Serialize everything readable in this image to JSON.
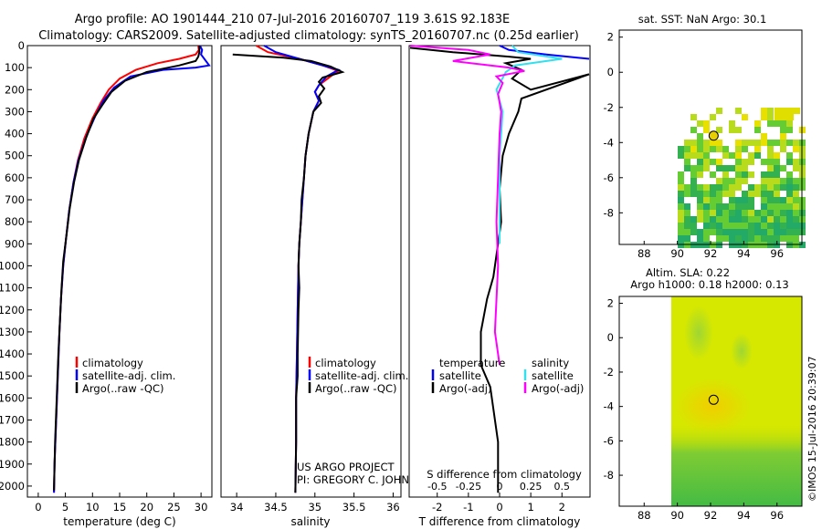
{
  "header": {
    "line1": "Argo profile: AO 1901444_210 07-Jul-2016 20160707_119 3.61S 92.183E",
    "line2": "Climatology: CARS2009. Satellite-adjusted climatology: synTS_20160707.nc (0.25d earlier)"
  },
  "colors": {
    "climatology": "#ff0000",
    "satellite": "#0000ff",
    "argo": "#000000",
    "sal_sat": "#33e0ee",
    "sal_argo": "#ff00ff"
  },
  "chart_data": [
    {
      "type": "line",
      "id": "temperature",
      "xlabel": "temperature (deg C)",
      "ylabel": "",
      "xlim": [
        -2,
        32
      ],
      "ylim": [
        2050,
        0
      ],
      "xticks": [
        0,
        5,
        10,
        15,
        20,
        25,
        30
      ],
      "yticks": [
        0,
        100,
        200,
        300,
        400,
        500,
        600,
        700,
        800,
        900,
        1000,
        1100,
        1200,
        1300,
        1400,
        1500,
        1600,
        1700,
        1800,
        1900,
        2000
      ],
      "legend": [
        "climatology",
        "satellite-adj. clim.",
        "Argo(..raw -QC)"
      ],
      "series": [
        {
          "name": "climatology",
          "color": "red",
          "points": [
            [
              29.5,
              0
            ],
            [
              29.6,
              20
            ],
            [
              29.0,
              40
            ],
            [
              26,
              60
            ],
            [
              22,
              80
            ],
            [
              18,
              110
            ],
            [
              15,
              150
            ],
            [
              13,
              200
            ],
            [
              11.5,
              260
            ],
            [
              10,
              330
            ],
            [
              8.5,
              420
            ],
            [
              7.3,
              520
            ],
            [
              6.5,
              620
            ],
            [
              5.7,
              750
            ],
            [
              5.1,
              880
            ],
            [
              4.6,
              1000
            ],
            [
              4.2,
              1150
            ],
            [
              3.9,
              1300
            ],
            [
              3.6,
              1500
            ],
            [
              3.3,
              1700
            ],
            [
              3.0,
              1900
            ],
            [
              2.9,
              2030
            ]
          ]
        },
        {
          "name": "satellite-adj. clim.",
          "color": "blue",
          "points": [
            [
              29.8,
              0
            ],
            [
              30.2,
              20
            ],
            [
              30.0,
              40
            ],
            [
              31.5,
              90
            ],
            [
              29,
              100
            ],
            [
              23,
              110
            ],
            [
              17,
              140
            ],
            [
              14,
              190
            ],
            [
              12,
              250
            ],
            [
              10.5,
              320
            ],
            [
              8.9,
              410
            ],
            [
              7.4,
              520
            ],
            [
              6.5,
              620
            ],
            [
              5.7,
              750
            ],
            [
              5.1,
              880
            ],
            [
              4.6,
              1000
            ],
            [
              4.2,
              1150
            ],
            [
              3.9,
              1300
            ],
            [
              3.6,
              1500
            ],
            [
              3.3,
              1700
            ],
            [
              3.0,
              1900
            ],
            [
              2.9,
              2030
            ]
          ]
        },
        {
          "name": "Argo(..raw -QC)",
          "color": "black",
          "points": [
            [
              29.7,
              0
            ],
            [
              29.7,
              30
            ],
            [
              29.5,
              50
            ],
            [
              29.0,
              70
            ],
            [
              26,
              90
            ],
            [
              20,
              120
            ],
            [
              16,
              160
            ],
            [
              13.5,
              210
            ],
            [
              11.8,
              270
            ],
            [
              10.2,
              330
            ],
            [
              8.8,
              420
            ],
            [
              7.5,
              520
            ],
            [
              6.6,
              620
            ],
            [
              5.8,
              740
            ],
            [
              5.2,
              860
            ],
            [
              4.6,
              980
            ],
            [
              4.3,
              1100
            ],
            [
              4.1,
              1200
            ],
            [
              3.7,
              1400
            ],
            [
              3.4,
              1600
            ],
            [
              3.1,
              1800
            ],
            [
              2.9,
              2020
            ]
          ]
        }
      ]
    },
    {
      "type": "line",
      "id": "salinity",
      "xlabel": "salinity",
      "ylabel": "",
      "xlim": [
        33.8,
        36.1
      ],
      "ylim": [
        2050,
        0
      ],
      "xticks": [
        34,
        34.5,
        35,
        35.5,
        36
      ],
      "legend": [
        "climatology",
        "satellite-adj. clim.",
        "Argo(..raw -QC)"
      ],
      "series": [
        {
          "name": "climatology",
          "color": "red",
          "points": [
            [
              34.25,
              0
            ],
            [
              34.4,
              30
            ],
            [
              34.8,
              60
            ],
            [
              35.1,
              90
            ],
            [
              35.3,
              115
            ],
            [
              35.2,
              140
            ],
            [
              35.05,
              180
            ],
            [
              35.0,
              210
            ],
            [
              35.05,
              250
            ],
            [
              34.98,
              300
            ],
            [
              34.92,
              400
            ],
            [
              34.88,
              500
            ],
            [
              34.86,
              600
            ],
            [
              34.84,
              700
            ],
            [
              34.82,
              800
            ],
            [
              34.8,
              900
            ],
            [
              34.79,
              1000
            ],
            [
              34.78,
              1200
            ],
            [
              34.77,
              1400
            ],
            [
              34.76,
              1600
            ],
            [
              34.76,
              1800
            ],
            [
              34.75,
              2030
            ]
          ]
        },
        {
          "name": "satellite-adj. clim.",
          "color": "blue",
          "points": [
            [
              34.35,
              0
            ],
            [
              34.5,
              30
            ],
            [
              34.8,
              60
            ],
            [
              35.05,
              85
            ],
            [
              35.3,
              110
            ],
            [
              35.15,
              140
            ],
            [
              35.05,
              180
            ],
            [
              35.0,
              210
            ],
            [
              35.05,
              250
            ],
            [
              34.98,
              300
            ],
            [
              34.92,
              400
            ],
            [
              34.88,
              500
            ],
            [
              34.86,
              600
            ],
            [
              34.84,
              700
            ],
            [
              34.82,
              800
            ],
            [
              34.8,
              900
            ],
            [
              34.79,
              1000
            ],
            [
              34.78,
              1200
            ],
            [
              34.77,
              1400
            ],
            [
              34.76,
              1600
            ],
            [
              34.76,
              1800
            ],
            [
              34.75,
              2030
            ]
          ]
        },
        {
          "name": "Argo(..raw -QC)",
          "color": "black",
          "points": [
            [
              33.95,
              40
            ],
            [
              34.6,
              55
            ],
            [
              34.95,
              70
            ],
            [
              35.2,
              95
            ],
            [
              35.35,
              120
            ],
            [
              35.1,
              145
            ],
            [
              35.05,
              165
            ],
            [
              35.12,
              195
            ],
            [
              35.05,
              230
            ],
            [
              35.08,
              260
            ],
            [
              34.98,
              300
            ],
            [
              34.92,
              400
            ],
            [
              34.88,
              500
            ],
            [
              34.86,
              600
            ],
            [
              34.83,
              700
            ],
            [
              34.82,
              800
            ],
            [
              34.8,
              900
            ],
            [
              34.79,
              1000
            ],
            [
              34.8,
              1100
            ],
            [
              34.79,
              1200
            ],
            [
              34.78,
              1400
            ],
            [
              34.78,
              1500
            ],
            [
              34.76,
              1600
            ],
            [
              34.76,
              1800
            ],
            [
              34.75,
              2030
            ]
          ]
        }
      ]
    },
    {
      "type": "line",
      "id": "difference",
      "xlabel": "T difference from climatology",
      "xlabel2": "S difference from climatology",
      "xlim_T": [
        -2.9,
        2.9
      ],
      "xticks_T": [
        -2,
        -1,
        0,
        1,
        2
      ],
      "xticks_S": [
        -0.5,
        -0.25,
        0,
        0.25,
        0.5
      ],
      "xticks_S_labels": [
        "-0.5",
        "-0.25",
        "0",
        "0.25",
        "0.5"
      ],
      "ylim": [
        2050,
        0
      ],
      "legend_left_title": "temperature",
      "legend_right_title": "salinity",
      "legend": [
        "satellite",
        "Argo(-adj)",
        "satellite",
        "Argo(-adj)"
      ],
      "series": [
        {
          "name": "T satellite",
          "color": "blue",
          "points": [
            [
              0,
              0
            ],
            [
              0.3,
              20
            ],
            [
              1.5,
              40
            ],
            [
              2.9,
              60
            ]
          ]
        },
        {
          "name": "T Argo(-adj)",
          "color": "black",
          "points": [
            [
              -2.9,
              10
            ],
            [
              -1.5,
              30
            ],
            [
              0.3,
              50
            ],
            [
              1.0,
              60
            ],
            [
              0.2,
              80
            ],
            [
              0.7,
              110
            ],
            [
              0.4,
              150
            ],
            [
              1.0,
              200
            ],
            [
              2.9,
              130
            ],
            [
              0.7,
              240
            ],
            [
              0.6,
              300
            ],
            [
              0.3,
              400
            ],
            [
              0.1,
              500
            ],
            [
              0,
              650
            ],
            [
              0.05,
              800
            ],
            [
              -0.1,
              950
            ],
            [
              -0.2,
              1050
            ],
            [
              -0.4,
              1150
            ],
            [
              -0.6,
              1300
            ],
            [
              -0.6,
              1450
            ],
            [
              -0.3,
              1550
            ],
            [
              -0.2,
              1650
            ],
            [
              -0.05,
              1800
            ],
            [
              -0.05,
              2030
            ]
          ]
        },
        {
          "name": "S satellite",
          "color": "cyan",
          "points": [
            [
              0.4,
              0
            ],
            [
              0.6,
              30
            ],
            [
              2.0,
              60
            ],
            [
              0.5,
              90
            ],
            [
              0.2,
              120
            ],
            [
              -0.1,
              200
            ],
            [
              0.1,
              300
            ],
            [
              0.05,
              400
            ],
            [
              0,
              500
            ],
            [
              0,
              700
            ],
            [
              0,
              900
            ]
          ]
        },
        {
          "name": "S Argo(-adj)",
          "color": "magenta",
          "points": [
            [
              -2.9,
              0
            ],
            [
              -1.0,
              20
            ],
            [
              -0.3,
              40
            ],
            [
              -1.5,
              70
            ],
            [
              0.3,
              100
            ],
            [
              0.8,
              115
            ],
            [
              -0.1,
              140
            ],
            [
              0.1,
              170
            ],
            [
              -0.05,
              220
            ],
            [
              0.05,
              300
            ],
            [
              0,
              400
            ],
            [
              -0.05,
              600
            ],
            [
              -0.1,
              800
            ],
            [
              -0.05,
              1000
            ],
            [
              -0.1,
              1150
            ],
            [
              -0.15,
              1300
            ],
            [
              0,
              1450
            ]
          ]
        }
      ]
    },
    {
      "type": "heatmap",
      "id": "sst-map",
      "title": "sat. SST: NaN Argo: 30.1",
      "xticks": [
        88,
        90,
        92,
        94,
        96
      ],
      "yticks": [
        2,
        0,
        -2,
        -4,
        -6,
        -8
      ],
      "xlim": [
        86.5,
        97.5
      ],
      "ylim": [
        -9.8,
        2.4
      ],
      "argo_location": [
        92.183,
        -3.61
      ]
    },
    {
      "type": "heatmap",
      "id": "sla-map",
      "title": "Altim. SLA: 0.22",
      "subtitle": "Argo h1000: 0.18 h2000: 0.13",
      "xticks": [
        88,
        90,
        92,
        94,
        96
      ],
      "yticks": [
        2,
        0,
        -2,
        -4,
        -6,
        -8
      ],
      "xlim": [
        86.5,
        97.5
      ],
      "ylim": [
        -9.8,
        2.4
      ],
      "argo_location": [
        92.183,
        -3.61
      ]
    }
  ],
  "footer": {
    "project": "US ARGO PROJECT",
    "pi": "PI: GREGORY C. JOHNSON",
    "credit": "©IMOS 15-Jul-2016 20:39:07"
  }
}
